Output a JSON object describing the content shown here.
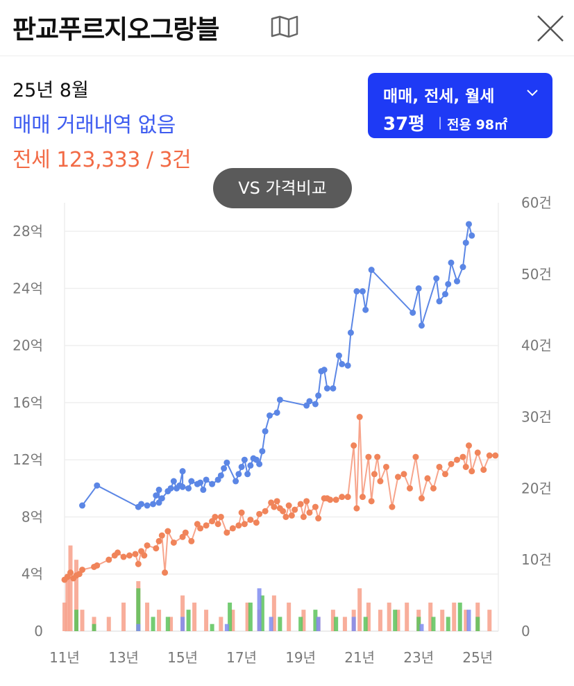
{
  "header": {
    "title": "판교푸르지오그랑블"
  },
  "summary": {
    "date": "25년 8월",
    "sale_text": "매매 거래내역 없음",
    "jeonse_text": "전세 123,333 / 3건"
  },
  "filter": {
    "types": "매매, 전세, 월세",
    "size": "37평",
    "separator": "|",
    "area": "전용 98㎡"
  },
  "vs_button": "VS 가격비교",
  "icons": {
    "map": "map-icon",
    "close": "close-icon",
    "dropdown": "chevron-down-icon"
  },
  "colors": {
    "sale": "#5b86e5",
    "jeonse": "#f0845a",
    "bar_jeonse": "#f7a08a",
    "bar_monthly": "#5cc35a",
    "bar_sale": "#7f8cf0",
    "accent": "#1e3af5"
  },
  "chart_data": {
    "type": "line",
    "x_ticks": [
      "11년",
      "13년",
      "15년",
      "17년",
      "19년",
      "21년",
      "23년",
      "25년"
    ],
    "y_left_ticks": [
      "0",
      "4억",
      "8억",
      "12억",
      "16억",
      "20억",
      "24억",
      "28억"
    ],
    "y_right_ticks": [
      "0",
      "10건",
      "20건",
      "30건",
      "40건",
      "50건",
      "60건"
    ],
    "y_left_range_eok": [
      0,
      30
    ],
    "y_right_range_count": [
      0,
      60
    ],
    "x_range_year": [
      2011,
      2025.7
    ],
    "series": [
      {
        "key": "sale",
        "points": [
          [
            2011.6,
            8.8
          ],
          [
            2012.1,
            10.2
          ],
          [
            2013.5,
            8.7
          ],
          [
            2013.6,
            8.9
          ],
          [
            2013.8,
            8.8
          ],
          [
            2014.0,
            8.9
          ],
          [
            2014.1,
            9.5
          ],
          [
            2014.2,
            9.9
          ],
          [
            2014.2,
            9.0
          ],
          [
            2014.3,
            9.3
          ],
          [
            2014.5,
            9.8
          ],
          [
            2014.6,
            10.0
          ],
          [
            2014.7,
            10.5
          ],
          [
            2014.8,
            10.0
          ],
          [
            2014.9,
            10.2
          ],
          [
            2015.0,
            11.2
          ],
          [
            2015.0,
            10.1
          ],
          [
            2015.2,
            10.0
          ],
          [
            2015.3,
            10.5
          ],
          [
            2015.5,
            10.3
          ],
          [
            2015.6,
            10.4
          ],
          [
            2015.7,
            9.9
          ],
          [
            2015.8,
            10.6
          ],
          [
            2016.0,
            10.3
          ],
          [
            2016.2,
            10.6
          ],
          [
            2016.3,
            10.9
          ],
          [
            2016.4,
            11.4
          ],
          [
            2016.5,
            11.8
          ],
          [
            2016.8,
            10.5
          ],
          [
            2016.9,
            11.0
          ],
          [
            2017.0,
            11.5
          ],
          [
            2017.1,
            12.0
          ],
          [
            2017.2,
            11.0
          ],
          [
            2017.3,
            11.6
          ],
          [
            2017.4,
            12.1
          ],
          [
            2017.5,
            12.0
          ],
          [
            2017.6,
            11.7
          ],
          [
            2017.7,
            12.6
          ],
          [
            2017.8,
            14.0
          ],
          [
            2017.95,
            15.1
          ],
          [
            2018.2,
            15.3
          ],
          [
            2018.3,
            16.2
          ],
          [
            2019.2,
            15.8
          ],
          [
            2019.3,
            16.1
          ],
          [
            2019.5,
            15.9
          ],
          [
            2019.6,
            16.5
          ],
          [
            2019.7,
            18.2
          ],
          [
            2019.8,
            18.3
          ],
          [
            2019.9,
            17.0
          ],
          [
            2020.1,
            17.0
          ],
          [
            2020.3,
            19.3
          ],
          [
            2020.4,
            18.7
          ],
          [
            2020.6,
            18.6
          ],
          [
            2020.7,
            20.9
          ],
          [
            2020.9,
            23.8
          ],
          [
            2021.1,
            23.8
          ],
          [
            2021.2,
            22.5
          ],
          [
            2021.4,
            25.3
          ],
          [
            2022.8,
            22.3
          ],
          [
            2023.0,
            24.0
          ],
          [
            2023.1,
            21.4
          ],
          [
            2023.6,
            24.7
          ],
          [
            2023.7,
            23.1
          ],
          [
            2023.9,
            23.6
          ],
          [
            2024.0,
            24.3
          ],
          [
            2024.1,
            25.8
          ],
          [
            2024.3,
            24.5
          ],
          [
            2024.5,
            25.5
          ],
          [
            2024.6,
            27.2
          ],
          [
            2024.7,
            28.5
          ],
          [
            2024.8,
            27.7
          ]
        ]
      },
      {
        "key": "jeonse",
        "points": [
          [
            2011.0,
            3.6
          ],
          [
            2011.1,
            3.8
          ],
          [
            2011.2,
            4.1
          ],
          [
            2011.3,
            3.7
          ],
          [
            2011.4,
            3.9
          ],
          [
            2011.5,
            4.0
          ],
          [
            2011.6,
            4.3
          ],
          [
            2012.0,
            4.5
          ],
          [
            2012.1,
            4.6
          ],
          [
            2012.5,
            5.0
          ],
          [
            2012.7,
            5.3
          ],
          [
            2012.8,
            5.5
          ],
          [
            2013.0,
            5.2
          ],
          [
            2013.2,
            5.3
          ],
          [
            2013.4,
            5.4
          ],
          [
            2013.5,
            4.7
          ],
          [
            2013.6,
            5.6
          ],
          [
            2013.7,
            5.3
          ],
          [
            2013.8,
            6.0
          ],
          [
            2014.1,
            5.8
          ],
          [
            2014.2,
            6.3
          ],
          [
            2014.3,
            6.7
          ],
          [
            2014.4,
            4.1
          ],
          [
            2014.5,
            7.0
          ],
          [
            2014.7,
            6.2
          ],
          [
            2015.0,
            6.6
          ],
          [
            2015.1,
            6.9
          ],
          [
            2015.3,
            6.3
          ],
          [
            2015.5,
            7.5
          ],
          [
            2015.6,
            7.2
          ],
          [
            2015.8,
            7.4
          ],
          [
            2016.0,
            7.7
          ],
          [
            2016.1,
            8.0
          ],
          [
            2016.2,
            7.5
          ],
          [
            2016.3,
            8.0
          ],
          [
            2016.5,
            6.9
          ],
          [
            2016.7,
            7.2
          ],
          [
            2016.9,
            7.4
          ],
          [
            2017.0,
            8.3
          ],
          [
            2017.1,
            7.5
          ],
          [
            2017.3,
            7.8
          ],
          [
            2017.5,
            7.6
          ],
          [
            2017.6,
            8.2
          ],
          [
            2017.8,
            8.4
          ],
          [
            2018.0,
            9.0
          ],
          [
            2018.1,
            8.7
          ],
          [
            2018.2,
            9.1
          ],
          [
            2018.3,
            8.6
          ],
          [
            2018.4,
            8.4
          ],
          [
            2018.5,
            8.0
          ],
          [
            2018.6,
            8.8
          ],
          [
            2018.7,
            8.1
          ],
          [
            2018.8,
            8.5
          ],
          [
            2019.0,
            8.9
          ],
          [
            2019.1,
            8.0
          ],
          [
            2019.2,
            9.1
          ],
          [
            2019.3,
            8.3
          ],
          [
            2019.5,
            8.7
          ],
          [
            2019.6,
            7.9
          ],
          [
            2019.8,
            9.3
          ],
          [
            2019.9,
            9.3
          ],
          [
            2020.0,
            9.2
          ],
          [
            2020.2,
            9.2
          ],
          [
            2020.4,
            9.4
          ],
          [
            2020.6,
            9.4
          ],
          [
            2020.8,
            13.0
          ],
          [
            2020.9,
            8.6
          ],
          [
            2021.0,
            15.0
          ],
          [
            2021.1,
            9.4
          ],
          [
            2021.3,
            12.2
          ],
          [
            2021.4,
            9.1
          ],
          [
            2021.5,
            11.0
          ],
          [
            2021.6,
            12.2
          ],
          [
            2021.7,
            10.5
          ],
          [
            2021.9,
            11.5
          ],
          [
            2022.1,
            8.7
          ],
          [
            2022.3,
            10.8
          ],
          [
            2022.5,
            11.0
          ],
          [
            2022.7,
            10.0
          ],
          [
            2022.9,
            12.2
          ],
          [
            2023.1,
            9.3
          ],
          [
            2023.3,
            10.7
          ],
          [
            2023.5,
            10.0
          ],
          [
            2023.7,
            11.5
          ],
          [
            2023.9,
            11.0
          ],
          [
            2024.1,
            11.7
          ],
          [
            2024.3,
            12.0
          ],
          [
            2024.5,
            12.2
          ],
          [
            2024.6,
            11.5
          ],
          [
            2024.7,
            13.0
          ],
          [
            2024.8,
            11.2
          ],
          [
            2025.0,
            12.5
          ],
          [
            2025.2,
            11.3
          ],
          [
            2025.4,
            12.3
          ],
          [
            2025.6,
            12.3
          ]
        ]
      }
    ],
    "bars": {
      "jeonse": [
        [
          2011.0,
          4
        ],
        [
          2011.1,
          8
        ],
        [
          2011.2,
          12
        ],
        [
          2011.4,
          10
        ],
        [
          2011.6,
          3
        ],
        [
          2012.0,
          2
        ],
        [
          2012.5,
          2
        ],
        [
          2013.0,
          4
        ],
        [
          2013.5,
          7
        ],
        [
          2013.8,
          4
        ],
        [
          2014.2,
          3
        ],
        [
          2014.6,
          2
        ],
        [
          2015.0,
          5
        ],
        [
          2015.4,
          4
        ],
        [
          2015.8,
          3
        ],
        [
          2016.3,
          2
        ],
        [
          2016.7,
          3
        ],
        [
          2017.2,
          4
        ],
        [
          2017.6,
          3
        ],
        [
          2018.1,
          5
        ],
        [
          2018.6,
          4
        ],
        [
          2019.1,
          3
        ],
        [
          2019.6,
          2
        ],
        [
          2020.1,
          3
        ],
        [
          2020.5,
          2
        ],
        [
          2020.8,
          3
        ],
        [
          2021.0,
          6
        ],
        [
          2021.3,
          4
        ],
        [
          2021.7,
          3
        ],
        [
          2022.0,
          4
        ],
        [
          2022.3,
          3
        ],
        [
          2022.6,
          4
        ],
        [
          2023.0,
          3
        ],
        [
          2023.4,
          4
        ],
        [
          2023.8,
          3
        ],
        [
          2024.2,
          4
        ],
        [
          2024.6,
          3
        ],
        [
          2025.0,
          4
        ],
        [
          2025.4,
          3
        ]
      ],
      "monthly": [
        [
          2011.4,
          3
        ],
        [
          2012.0,
          1
        ],
        [
          2013.5,
          6
        ],
        [
          2014.0,
          2
        ],
        [
          2014.5,
          2
        ],
        [
          2015.2,
          3
        ],
        [
          2016.0,
          1
        ],
        [
          2016.6,
          4
        ],
        [
          2017.3,
          4
        ],
        [
          2017.7,
          5
        ],
        [
          2018.3,
          2
        ],
        [
          2019.0,
          2
        ],
        [
          2019.5,
          3
        ],
        [
          2020.2,
          2
        ],
        [
          2021.2,
          2
        ],
        [
          2022.2,
          3
        ],
        [
          2023.0,
          2
        ],
        [
          2023.5,
          2
        ],
        [
          2024.0,
          2
        ],
        [
          2024.4,
          4
        ],
        [
          2025.0,
          2
        ]
      ],
      "sale": [
        [
          2013.5,
          1
        ],
        [
          2015.0,
          2
        ],
        [
          2016.5,
          1
        ],
        [
          2017.6,
          6
        ],
        [
          2018.0,
          2
        ],
        [
          2019.6,
          2
        ],
        [
          2020.8,
          2
        ],
        [
          2023.1,
          1
        ],
        [
          2024.7,
          3
        ]
      ]
    }
  }
}
